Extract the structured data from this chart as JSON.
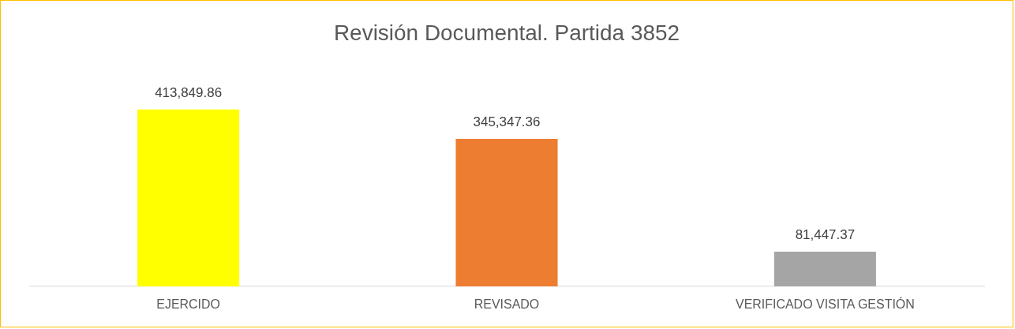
{
  "chart_data": {
    "type": "bar",
    "title": "Revisión Documental. Partida 3852",
    "categories": [
      "EJERCIDO",
      "REVISADO",
      "VERIFICADO VISITA GESTIÓN"
    ],
    "values": [
      413849.86,
      345347.36,
      81447.37
    ],
    "value_labels": [
      "413,849.86",
      "345,347.36",
      "81,447.37"
    ],
    "colors": [
      "#ffff00",
      "#ed7d31",
      "#a5a5a5"
    ],
    "tick_labels": "x",
    "grid": false,
    "legend": false
  }
}
